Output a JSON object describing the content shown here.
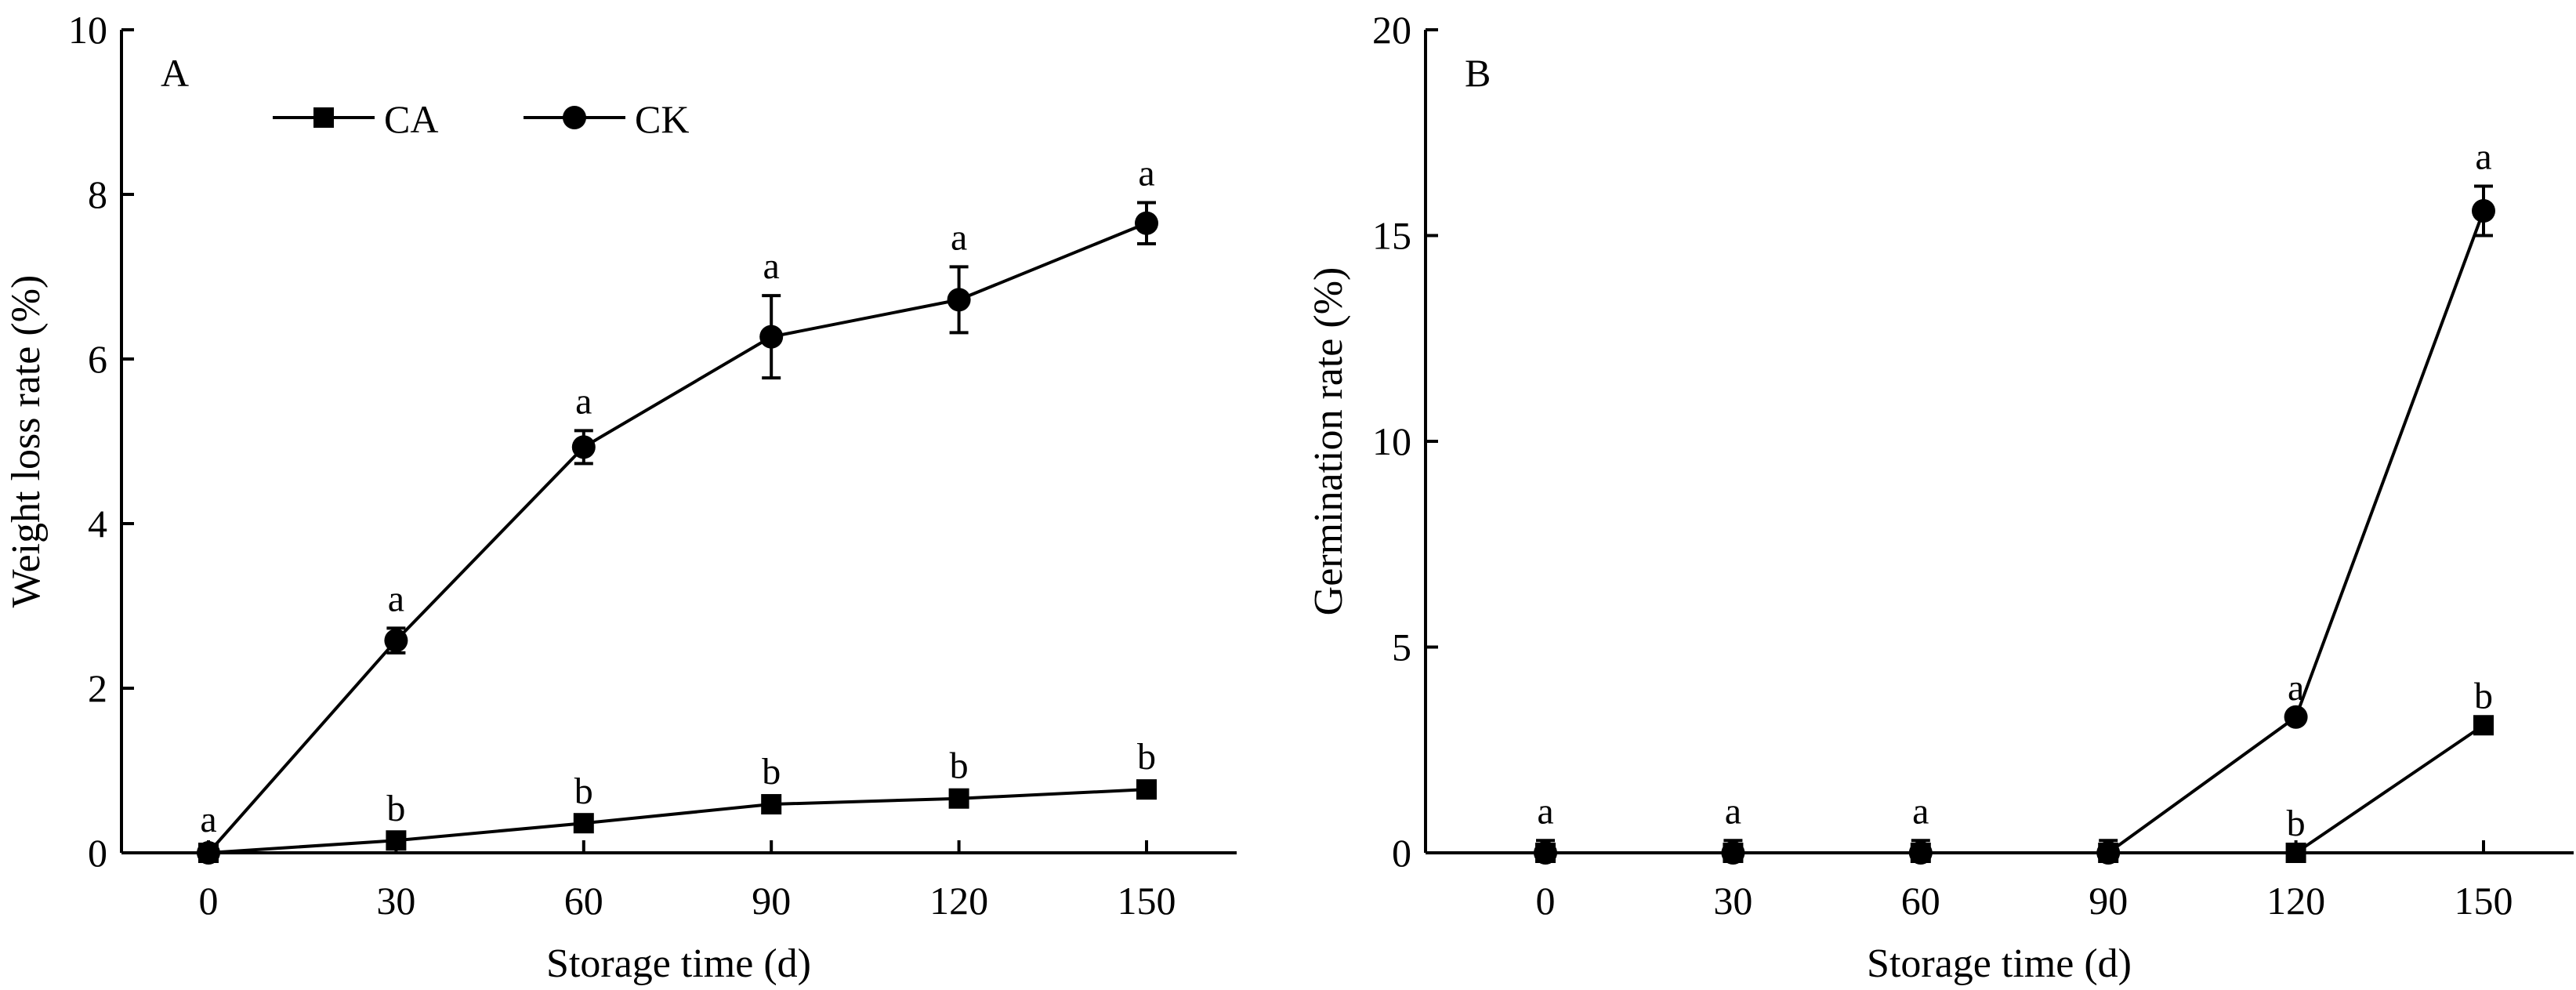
{
  "chart_data": [
    {
      "type": "line",
      "panel_label": "A",
      "xlabel": "Storage time (d)",
      "ylabel": "Weight loss rate (%)",
      "x": [
        0,
        30,
        60,
        90,
        120,
        150
      ],
      "xticks": [
        "0",
        "30",
        "60",
        "90",
        "120",
        "150"
      ],
      "xlim": [
        -23,
        173
      ],
      "ylim": [
        0,
        10
      ],
      "yticks": [
        "0",
        "2",
        "4",
        "6",
        "8",
        "10"
      ],
      "legend": {
        "placement": "top-left",
        "entries": [
          "CA",
          "CK"
        ]
      },
      "series": [
        {
          "name": "CA",
          "marker": "square",
          "values": [
            0,
            0.15,
            0.36,
            0.59,
            0.66,
            0.77
          ],
          "errors": [
            0.05,
            0.03,
            0.03,
            0.04,
            0.04,
            0.04
          ],
          "letters": [
            "",
            "b",
            "b",
            "b",
            "b",
            "b"
          ]
        },
        {
          "name": "CK",
          "marker": "circle",
          "values": [
            0,
            2.58,
            4.93,
            6.27,
            6.72,
            7.65
          ],
          "errors": [
            0.05,
            0.15,
            0.2,
            0.5,
            0.4,
            0.25
          ],
          "letters": [
            "a",
            "a",
            "a",
            "a",
            "a",
            "a"
          ]
        }
      ]
    },
    {
      "type": "line",
      "panel_label": "B",
      "xlabel": "Storage time (d)",
      "ylabel": "Germination rate (%)",
      "x": [
        0,
        30,
        60,
        90,
        120,
        150
      ],
      "xticks": [
        "0",
        "30",
        "60",
        "90",
        "120",
        "150"
      ],
      "xlim": [
        -23,
        173
      ],
      "ylim": [
        0,
        20
      ],
      "yticks": [
        "0",
        "5",
        "10",
        "15",
        "20"
      ],
      "series": [
        {
          "name": "CA",
          "marker": "square",
          "values": [
            0,
            0,
            0,
            0,
            0,
            3.1
          ],
          "errors": [
            0,
            0,
            0,
            0,
            0,
            0
          ],
          "letters": [
            "",
            "",
            "",
            "",
            "b",
            "b"
          ]
        },
        {
          "name": "CK",
          "marker": "circle",
          "values": [
            0,
            0,
            0,
            0,
            3.3,
            15.6
          ],
          "errors": [
            0.3,
            0.3,
            0.3,
            0.3,
            0,
            0.6
          ],
          "letters": [
            "a",
            "a",
            "a",
            "",
            "a",
            "a"
          ]
        }
      ]
    }
  ]
}
